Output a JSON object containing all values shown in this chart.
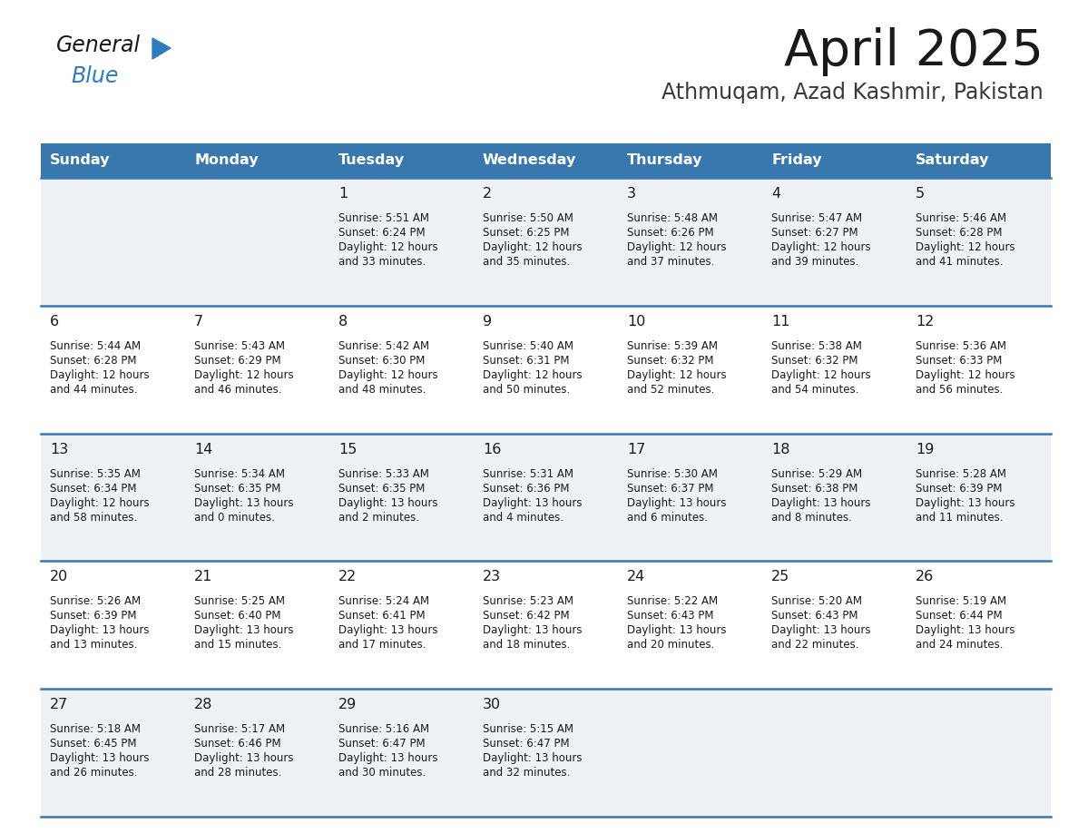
{
  "title": "April 2025",
  "subtitle": "Athmuqam, Azad Kashmir, Pakistan",
  "header_bg_color": "#3878ae",
  "header_text_color": "#ffffff",
  "row_bg_colors": [
    "#eef2f7",
    "#ffffff"
  ],
  "border_color": "#3878ae",
  "text_color": "#1a1a1a",
  "day_names": [
    "Sunday",
    "Monday",
    "Tuesday",
    "Wednesday",
    "Thursday",
    "Friday",
    "Saturday"
  ],
  "calendar_data": [
    [
      {
        "day": "",
        "sunrise": "",
        "sunset": "",
        "daylight": ""
      },
      {
        "day": "",
        "sunrise": "",
        "sunset": "",
        "daylight": ""
      },
      {
        "day": "1",
        "sunrise": "5:51 AM",
        "sunset": "6:24 PM",
        "daylight": "12 hours",
        "daylight2": "and 33 minutes."
      },
      {
        "day": "2",
        "sunrise": "5:50 AM",
        "sunset": "6:25 PM",
        "daylight": "12 hours",
        "daylight2": "and 35 minutes."
      },
      {
        "day": "3",
        "sunrise": "5:48 AM",
        "sunset": "6:26 PM",
        "daylight": "12 hours",
        "daylight2": "and 37 minutes."
      },
      {
        "day": "4",
        "sunrise": "5:47 AM",
        "sunset": "6:27 PM",
        "daylight": "12 hours",
        "daylight2": "and 39 minutes."
      },
      {
        "day": "5",
        "sunrise": "5:46 AM",
        "sunset": "6:28 PM",
        "daylight": "12 hours",
        "daylight2": "and 41 minutes."
      }
    ],
    [
      {
        "day": "6",
        "sunrise": "5:44 AM",
        "sunset": "6:28 PM",
        "daylight": "12 hours",
        "daylight2": "and 44 minutes."
      },
      {
        "day": "7",
        "sunrise": "5:43 AM",
        "sunset": "6:29 PM",
        "daylight": "12 hours",
        "daylight2": "and 46 minutes."
      },
      {
        "day": "8",
        "sunrise": "5:42 AM",
        "sunset": "6:30 PM",
        "daylight": "12 hours",
        "daylight2": "and 48 minutes."
      },
      {
        "day": "9",
        "sunrise": "5:40 AM",
        "sunset": "6:31 PM",
        "daylight": "12 hours",
        "daylight2": "and 50 minutes."
      },
      {
        "day": "10",
        "sunrise": "5:39 AM",
        "sunset": "6:32 PM",
        "daylight": "12 hours",
        "daylight2": "and 52 minutes."
      },
      {
        "day": "11",
        "sunrise": "5:38 AM",
        "sunset": "6:32 PM",
        "daylight": "12 hours",
        "daylight2": "and 54 minutes."
      },
      {
        "day": "12",
        "sunrise": "5:36 AM",
        "sunset": "6:33 PM",
        "daylight": "12 hours",
        "daylight2": "and 56 minutes."
      }
    ],
    [
      {
        "day": "13",
        "sunrise": "5:35 AM",
        "sunset": "6:34 PM",
        "daylight": "12 hours",
        "daylight2": "and 58 minutes."
      },
      {
        "day": "14",
        "sunrise": "5:34 AM",
        "sunset": "6:35 PM",
        "daylight": "13 hours",
        "daylight2": "and 0 minutes."
      },
      {
        "day": "15",
        "sunrise": "5:33 AM",
        "sunset": "6:35 PM",
        "daylight": "13 hours",
        "daylight2": "and 2 minutes."
      },
      {
        "day": "16",
        "sunrise": "5:31 AM",
        "sunset": "6:36 PM",
        "daylight": "13 hours",
        "daylight2": "and 4 minutes."
      },
      {
        "day": "17",
        "sunrise": "5:30 AM",
        "sunset": "6:37 PM",
        "daylight": "13 hours",
        "daylight2": "and 6 minutes."
      },
      {
        "day": "18",
        "sunrise": "5:29 AM",
        "sunset": "6:38 PM",
        "daylight": "13 hours",
        "daylight2": "and 8 minutes."
      },
      {
        "day": "19",
        "sunrise": "5:28 AM",
        "sunset": "6:39 PM",
        "daylight": "13 hours",
        "daylight2": "and 11 minutes."
      }
    ],
    [
      {
        "day": "20",
        "sunrise": "5:26 AM",
        "sunset": "6:39 PM",
        "daylight": "13 hours",
        "daylight2": "and 13 minutes."
      },
      {
        "day": "21",
        "sunrise": "5:25 AM",
        "sunset": "6:40 PM",
        "daylight": "13 hours",
        "daylight2": "and 15 minutes."
      },
      {
        "day": "22",
        "sunrise": "5:24 AM",
        "sunset": "6:41 PM",
        "daylight": "13 hours",
        "daylight2": "and 17 minutes."
      },
      {
        "day": "23",
        "sunrise": "5:23 AM",
        "sunset": "6:42 PM",
        "daylight": "13 hours",
        "daylight2": "and 18 minutes."
      },
      {
        "day": "24",
        "sunrise": "5:22 AM",
        "sunset": "6:43 PM",
        "daylight": "13 hours",
        "daylight2": "and 20 minutes."
      },
      {
        "day": "25",
        "sunrise": "5:20 AM",
        "sunset": "6:43 PM",
        "daylight": "13 hours",
        "daylight2": "and 22 minutes."
      },
      {
        "day": "26",
        "sunrise": "5:19 AM",
        "sunset": "6:44 PM",
        "daylight": "13 hours",
        "daylight2": "and 24 minutes."
      }
    ],
    [
      {
        "day": "27",
        "sunrise": "5:18 AM",
        "sunset": "6:45 PM",
        "daylight": "13 hours",
        "daylight2": "and 26 minutes."
      },
      {
        "day": "28",
        "sunrise": "5:17 AM",
        "sunset": "6:46 PM",
        "daylight": "13 hours",
        "daylight2": "and 28 minutes."
      },
      {
        "day": "29",
        "sunrise": "5:16 AM",
        "sunset": "6:47 PM",
        "daylight": "13 hours",
        "daylight2": "and 30 minutes."
      },
      {
        "day": "30",
        "sunrise": "5:15 AM",
        "sunset": "6:47 PM",
        "daylight": "13 hours",
        "daylight2": "and 32 minutes."
      },
      {
        "day": "",
        "sunrise": "",
        "sunset": "",
        "daylight": "",
        "daylight2": ""
      },
      {
        "day": "",
        "sunrise": "",
        "sunset": "",
        "daylight": "",
        "daylight2": ""
      },
      {
        "day": "",
        "sunrise": "",
        "sunset": "",
        "daylight": "",
        "daylight2": ""
      }
    ]
  ],
  "logo_color_general": "#1a1a1a",
  "logo_color_blue": "#2e7bbf",
  "logo_triangle_color": "#2e7bbf"
}
